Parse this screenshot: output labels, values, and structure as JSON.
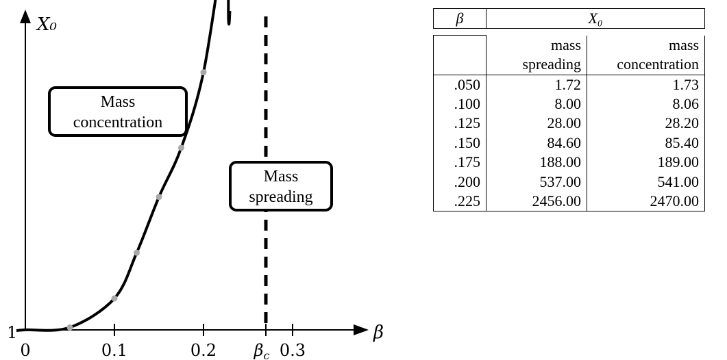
{
  "chart_data": [
    {
      "type": "line",
      "title": "",
      "xlabel": "β",
      "ylabel": "X₀",
      "x_ticks": [
        "0",
        "0.1",
        "0.2",
        "0.3"
      ],
      "x_tick_values": [
        0,
        0.1,
        0.2,
        0.3
      ],
      "beta_c_label": "βc",
      "beta_c": 0.27,
      "y_tick_label": "1",
      "regions": [
        {
          "name": "mass-concentration-region",
          "label_lines": [
            "Mass",
            "concentration"
          ]
        },
        {
          "name": "mass-spreading-region",
          "label_lines": [
            "Mass",
            "spreading"
          ]
        }
      ],
      "points": {
        "x": [
          0.05,
          0.1,
          0.125,
          0.15,
          0.175,
          0.2,
          0.225
        ],
        "y": [
          1.72,
          8.0,
          28.0,
          84.6,
          188.0,
          537.0,
          2456.0
        ]
      },
      "scale_note": "",
      "grid": false,
      "legend": "none"
    },
    {
      "type": "table",
      "header": {
        "beta": "β",
        "x0": "X₀"
      },
      "subheader": {
        "col2_line1": "mass",
        "col2_line2": "spreading",
        "col3_line1": "mass",
        "col3_line2": "concentration"
      },
      "rows": [
        {
          "beta": ".050",
          "spreading": "1.72",
          "concentration": "1.73"
        },
        {
          "beta": ".100",
          "spreading": "8.00",
          "concentration": "8.06"
        },
        {
          "beta": ".125",
          "spreading": "28.00",
          "concentration": "28.20"
        },
        {
          "beta": ".150",
          "spreading": "84.60",
          "concentration": "85.40"
        },
        {
          "beta": ".175",
          "spreading": "188.00",
          "concentration": "189.00"
        },
        {
          "beta": ".200",
          "spreading": "537.00",
          "concentration": "541.00"
        },
        {
          "beta": ".225",
          "spreading": "2456.00",
          "concentration": "2470.00"
        }
      ]
    }
  ]
}
